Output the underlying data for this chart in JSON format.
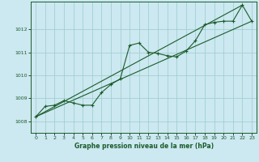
{
  "title": "Graphe pression niveau de la mer (hPa)",
  "background_color": "#cce8f0",
  "grid_color": "#99cccc",
  "line_color": "#1a5c2a",
  "xlim": [
    -0.5,
    23.5
  ],
  "ylim": [
    1007.5,
    1013.2
  ],
  "yticks": [
    1008,
    1009,
    1010,
    1011,
    1012
  ],
  "xticks": [
    0,
    1,
    2,
    3,
    4,
    5,
    6,
    7,
    8,
    9,
    10,
    11,
    12,
    13,
    14,
    15,
    16,
    17,
    18,
    19,
    20,
    21,
    22,
    23
  ],
  "series1_x": [
    0,
    1,
    2,
    3,
    4,
    5,
    6,
    7,
    8,
    9,
    10,
    11,
    12,
    13,
    14,
    15,
    16,
    17,
    18,
    19,
    20,
    21,
    22,
    23
  ],
  "series1_y": [
    1008.2,
    1008.65,
    1008.7,
    1008.9,
    1008.8,
    1008.7,
    1008.7,
    1009.25,
    1009.6,
    1009.85,
    1011.3,
    1011.4,
    1011.0,
    1010.95,
    1010.85,
    1010.8,
    1011.05,
    1011.5,
    1012.2,
    1012.3,
    1012.35,
    1012.35,
    1013.05,
    1012.35
  ],
  "series2_x": [
    0,
    22
  ],
  "series2_y": [
    1008.2,
    1013.05
  ],
  "series3_x": [
    0,
    23
  ],
  "series3_y": [
    1008.2,
    1012.35
  ]
}
